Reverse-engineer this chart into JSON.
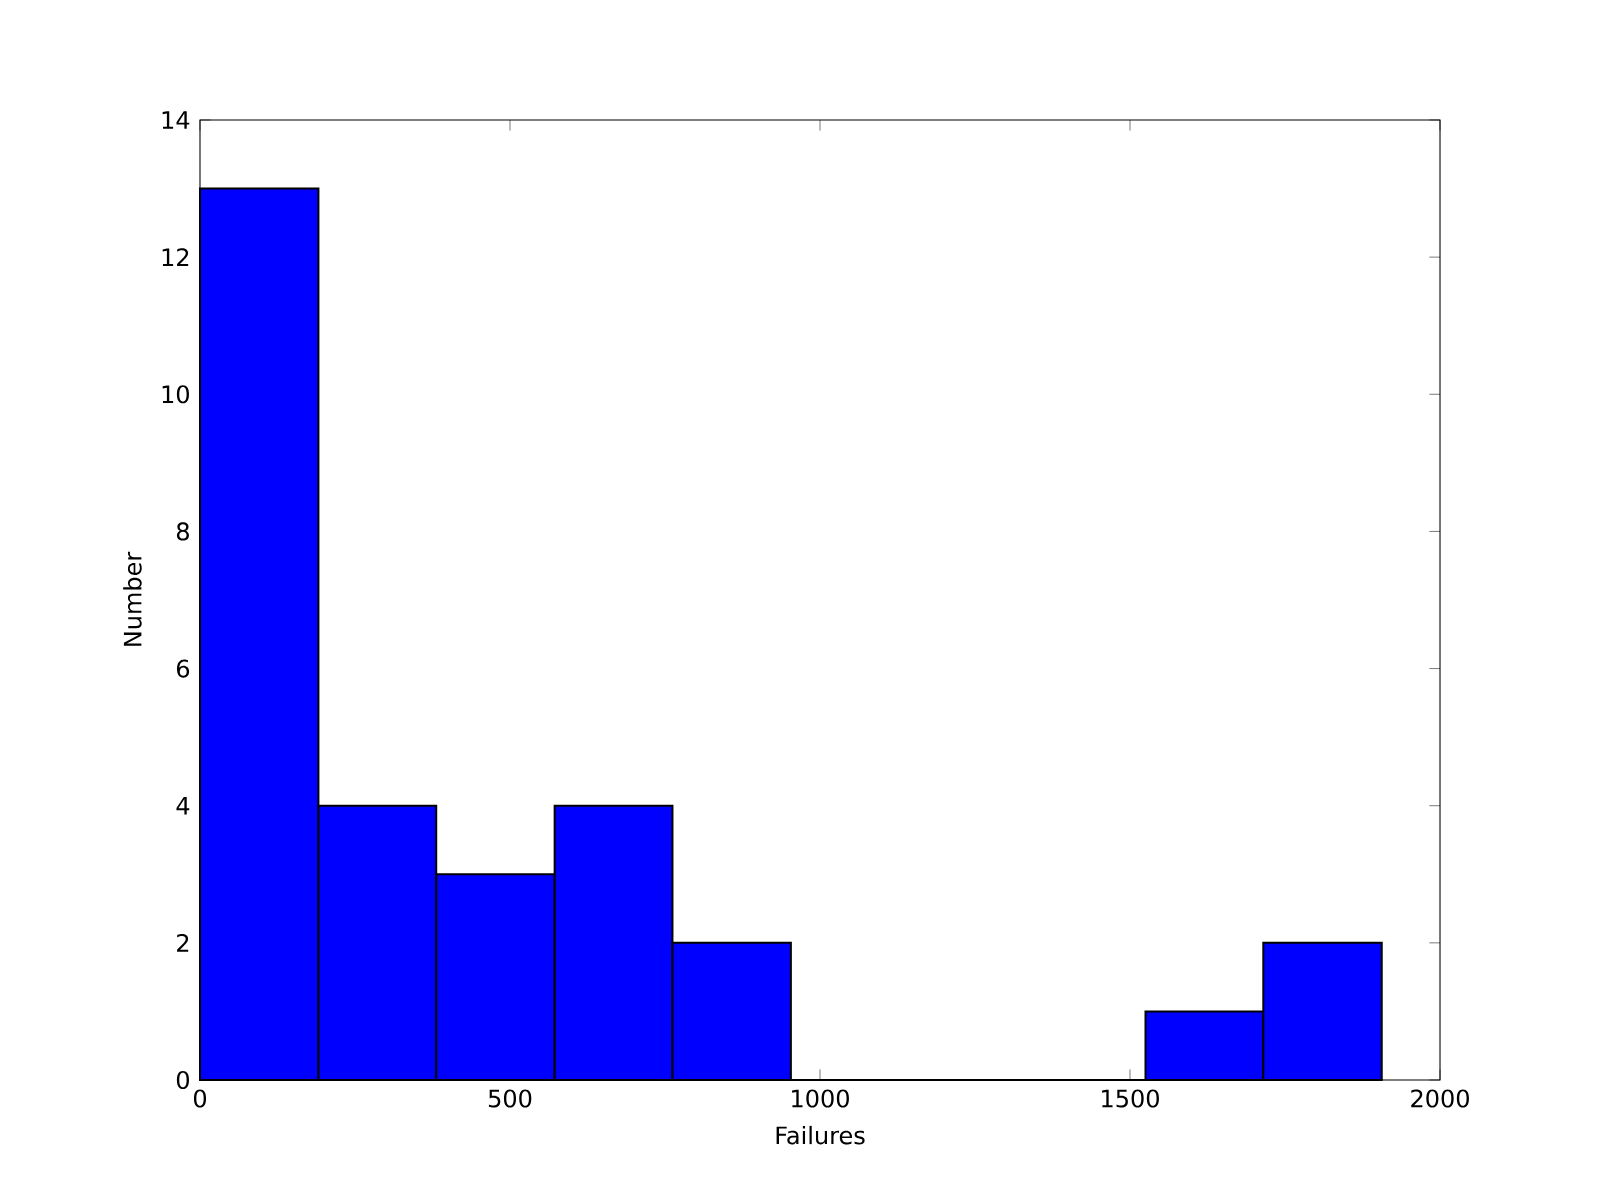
{
  "chart_data": {
    "type": "histogram",
    "xlabel": "Failures",
    "ylabel": "Number",
    "bins": [
      0,
      191,
      381,
      572,
      762,
      953,
      1525,
      1715,
      1906
    ],
    "values": [
      13,
      4,
      3,
      4,
      2,
      0,
      1,
      2
    ],
    "color": "#0000ff",
    "xlim": [
      0,
      2000
    ],
    "ylim": [
      0,
      14
    ],
    "xticks": [
      0,
      500,
      1000,
      1500,
      2000
    ],
    "yticks": [
      0,
      2,
      4,
      6,
      8,
      10,
      12,
      14
    ]
  }
}
